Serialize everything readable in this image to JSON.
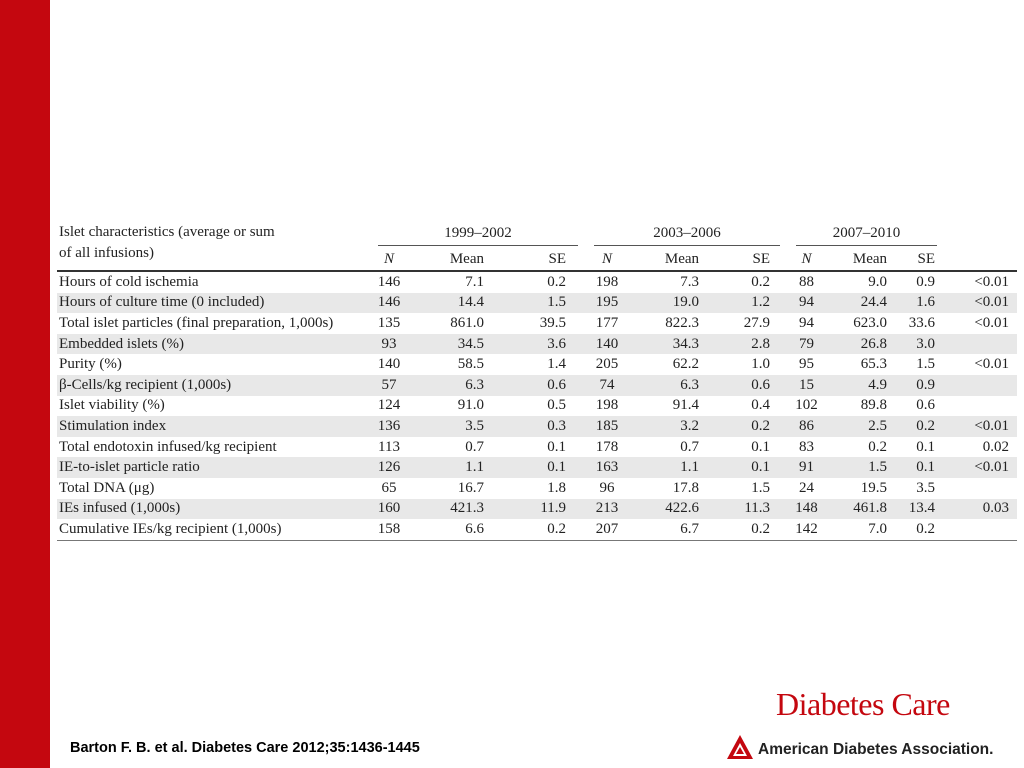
{
  "table": {
    "header_label_line1": "Islet characteristics (average or sum",
    "header_label_line2": "of all infusions)",
    "periods": [
      "1999–2002",
      "2003–2006",
      "2007–2010"
    ],
    "subheaders": [
      "N",
      "Mean",
      "SE"
    ],
    "rows": [
      {
        "label": "Hours of cold ischemia",
        "v": [
          "146",
          "7.1",
          "0.2",
          "198",
          "7.3",
          "0.2",
          "88",
          "9.0",
          "0.9"
        ],
        "p": "<0.01"
      },
      {
        "label": "Hours of culture time (0 included)",
        "v": [
          "146",
          "14.4",
          "1.5",
          "195",
          "19.0",
          "1.2",
          "94",
          "24.4",
          "1.6"
        ],
        "p": "<0.01"
      },
      {
        "label": "Total islet particles (final preparation, 1,000s)",
        "v": [
          "135",
          "861.0",
          "39.5",
          "177",
          "822.3",
          "27.9",
          "94",
          "623.0",
          "33.6"
        ],
        "p": "<0.01"
      },
      {
        "label": "Embedded islets (%)",
        "v": [
          "93",
          "34.5",
          "3.6",
          "140",
          "34.3",
          "2.8",
          "79",
          "26.8",
          "3.0"
        ],
        "p": ""
      },
      {
        "label": "Purity (%)",
        "v": [
          "140",
          "58.5",
          "1.4",
          "205",
          "62.2",
          "1.0",
          "95",
          "65.3",
          "1.5"
        ],
        "p": "<0.01"
      },
      {
        "label": "β-Cells/kg recipient (1,000s)",
        "v": [
          "57",
          "6.3",
          "0.6",
          "74",
          "6.3",
          "0.6",
          "15",
          "4.9",
          "0.9"
        ],
        "p": ""
      },
      {
        "label": "Islet viability (%)",
        "v": [
          "124",
          "91.0",
          "0.5",
          "198",
          "91.4",
          "0.4",
          "102",
          "89.8",
          "0.6"
        ],
        "p": ""
      },
      {
        "label": "Stimulation index",
        "v": [
          "136",
          "3.5",
          "0.3",
          "185",
          "3.2",
          "0.2",
          "86",
          "2.5",
          "0.2"
        ],
        "p": "<0.01"
      },
      {
        "label": "Total endotoxin infused/kg recipient",
        "v": [
          "113",
          "0.7",
          "0.1",
          "178",
          "0.7",
          "0.1",
          "83",
          "0.2",
          "0.1"
        ],
        "p": "0.02"
      },
      {
        "label": "IE-to-islet particle ratio",
        "v": [
          "126",
          "1.1",
          "0.1",
          "163",
          "1.1",
          "0.1",
          "91",
          "1.5",
          "0.1"
        ],
        "p": "<0.01"
      },
      {
        "label": "Total DNA (μg)",
        "v": [
          "65",
          "16.7",
          "1.8",
          "96",
          "17.8",
          "1.5",
          "24",
          "19.5",
          "3.5"
        ],
        "p": ""
      },
      {
        "label": "IEs infused (1,000s)",
        "v": [
          "160",
          "421.3",
          "11.9",
          "213",
          "422.6",
          "11.3",
          "148",
          "461.8",
          "13.4"
        ],
        "p": "0.03"
      },
      {
        "label": "Cumulative IEs/kg recipient (1,000s)",
        "v": [
          "158",
          "6.6",
          "0.2",
          "207",
          "6.7",
          "0.2",
          "142",
          "7.0",
          "0.2"
        ],
        "p": ""
      }
    ]
  },
  "footer": {
    "citation": "Barton F. B. et al. Diabetes Care 2012;35:1436-1445",
    "journal": "Diabetes Care",
    "organization": "American Diabetes Association."
  },
  "colors": {
    "brand_red": "#c4070f",
    "row_shade": "#e8e8e8"
  },
  "icons": [
    "ada-logo-icon"
  ]
}
